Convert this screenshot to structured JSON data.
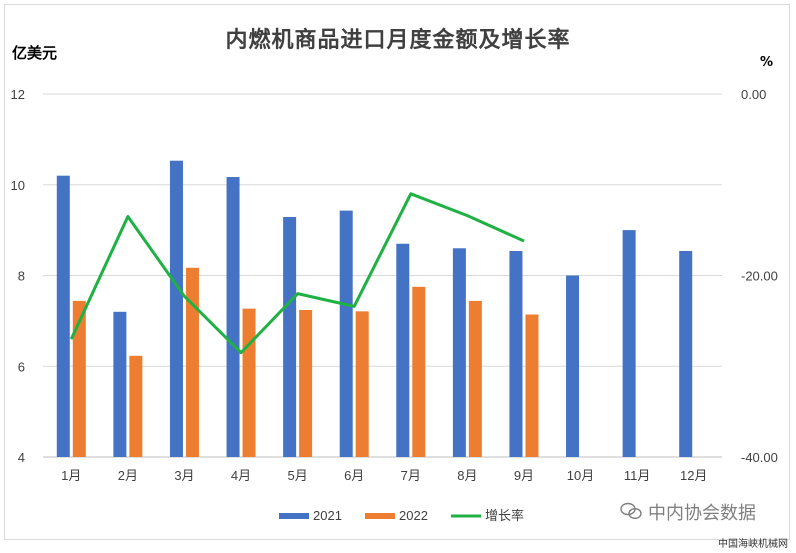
{
  "chart_data": {
    "type": "bar",
    "title": "内燃机商品进口月度金额及增长率",
    "y_left_unit": "亿美元",
    "y_right_unit": "%",
    "categories": [
      "1月",
      "2月",
      "3月",
      "4月",
      "5月",
      "6月",
      "7月",
      "8月",
      "9月",
      "10月",
      "11月",
      "12月"
    ],
    "y_left_range": [
      4,
      12
    ],
    "y_left_ticks": [
      "4",
      "6",
      "8",
      "10",
      "12"
    ],
    "y_right_range": [
      -40,
      0
    ],
    "y_right_ticks": [
      "-40.00",
      "-20.00",
      "0.00"
    ],
    "grid": true,
    "legend_position": "bottom",
    "series": [
      {
        "name": "2021",
        "kind": "bar",
        "axis": "left",
        "color": "#4472c4",
        "values": [
          10.2,
          7.2,
          10.53,
          10.17,
          9.29,
          9.43,
          8.7,
          8.6,
          8.54,
          8.0,
          9.0,
          8.54
        ]
      },
      {
        "name": "2022",
        "kind": "bar",
        "axis": "left",
        "color": "#ed7d31",
        "values": [
          7.44,
          6.23,
          8.17,
          7.27,
          7.24,
          7.21,
          7.75,
          7.44,
          7.14,
          null,
          null,
          null
        ]
      },
      {
        "name": "增长率",
        "kind": "line",
        "axis": "right",
        "color": "#1fb144",
        "values": [
          -27,
          -13.5,
          -22.3,
          -28.5,
          -22,
          -23.4,
          -11,
          -13.4,
          -16.2,
          null,
          null,
          null
        ]
      }
    ]
  },
  "watermark": "中内协会数据",
  "watermark_icon": "wechat-icon",
  "source_note": "中国海峡机械网"
}
